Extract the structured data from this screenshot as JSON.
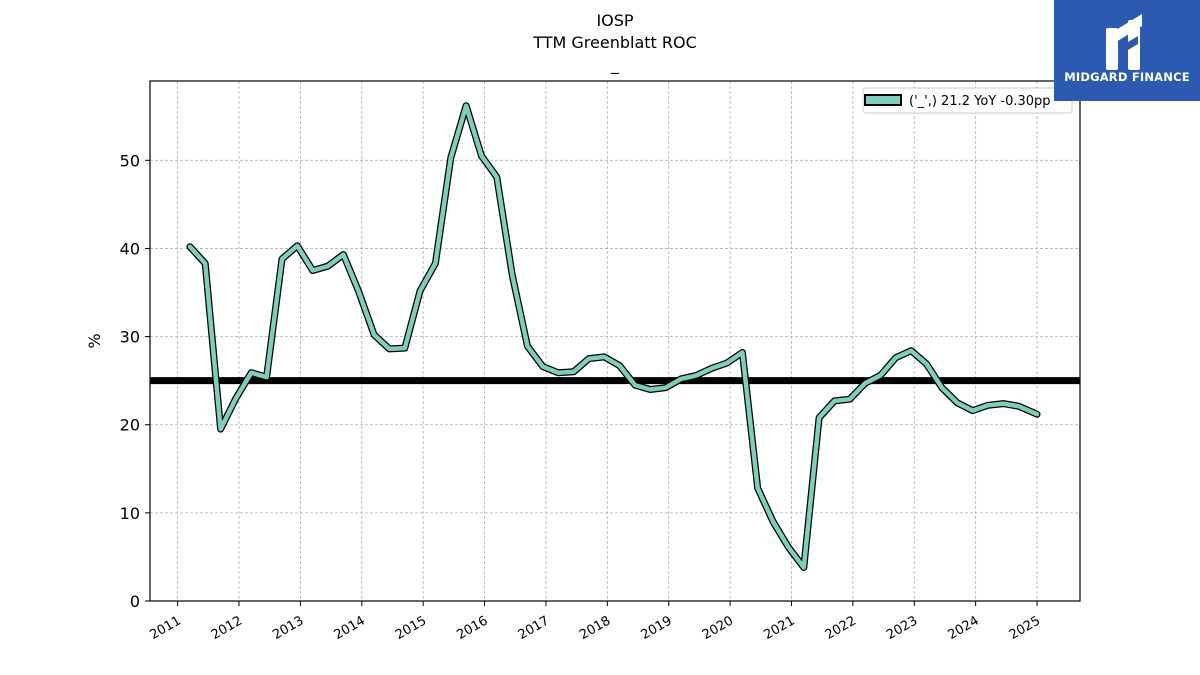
{
  "header": {
    "ticker": "IOSP",
    "metric": "TTM Greenblatt ROC",
    "subtitle": "_"
  },
  "logo": {
    "text": "MIDGARD FINANCE",
    "bg_color": "#2c5ab0"
  },
  "chart_data": {
    "type": "line",
    "ylabel": "%",
    "xlabel": "",
    "ylim": [
      0,
      59
    ],
    "xlim": [
      2010.55,
      2025.7
    ],
    "yticks": [
      0,
      10,
      20,
      30,
      40,
      50
    ],
    "xticks": [
      "2011",
      "2012",
      "2013",
      "2014",
      "2015",
      "2016",
      "2017",
      "2018",
      "2019",
      "2020",
      "2021",
      "2022",
      "2023",
      "2024",
      "2025"
    ],
    "grid": true,
    "legend": {
      "position": "top-right",
      "label": "('_',) 21.2 YoY -0.30pp"
    },
    "reference_line": {
      "y": 25,
      "color": "#000000"
    },
    "series": [
      {
        "name": "('_',) 21.2 YoY -0.30pp",
        "color": "#7fcdbb",
        "x": [
          2011.2,
          2011.45,
          2011.7,
          2011.95,
          2012.2,
          2012.45,
          2012.7,
          2012.95,
          2013.2,
          2013.45,
          2013.7,
          2013.95,
          2014.2,
          2014.45,
          2014.7,
          2014.95,
          2015.2,
          2015.45,
          2015.7,
          2015.95,
          2016.2,
          2016.45,
          2016.7,
          2016.95,
          2017.2,
          2017.45,
          2017.7,
          2017.95,
          2018.2,
          2018.45,
          2018.7,
          2018.95,
          2019.2,
          2019.45,
          2019.7,
          2019.95,
          2020.2,
          2020.45,
          2020.7,
          2020.95,
          2021.2,
          2021.45,
          2021.7,
          2021.95,
          2022.2,
          2022.45,
          2022.7,
          2022.95,
          2023.2,
          2023.45,
          2023.7,
          2023.95,
          2024.2,
          2024.45,
          2024.7,
          2025.0
        ],
        "y": [
          40.2,
          38.3,
          19.5,
          23.0,
          25.9,
          25.4,
          38.8,
          40.3,
          37.5,
          38.0,
          39.3,
          35.1,
          30.2,
          28.6,
          28.7,
          35.2,
          38.3,
          50.3,
          56.2,
          50.5,
          48.1,
          37.0,
          28.9,
          26.6,
          25.9,
          26.0,
          27.5,
          27.7,
          26.7,
          24.5,
          24.0,
          24.2,
          25.2,
          25.6,
          26.4,
          27.0,
          28.2,
          12.8,
          9.0,
          6.1,
          3.8,
          20.8,
          22.7,
          22.9,
          24.7,
          25.6,
          27.6,
          28.4,
          26.9,
          24.2,
          22.5,
          21.6,
          22.2,
          22.4,
          22.1,
          21.2
        ]
      }
    ]
  }
}
